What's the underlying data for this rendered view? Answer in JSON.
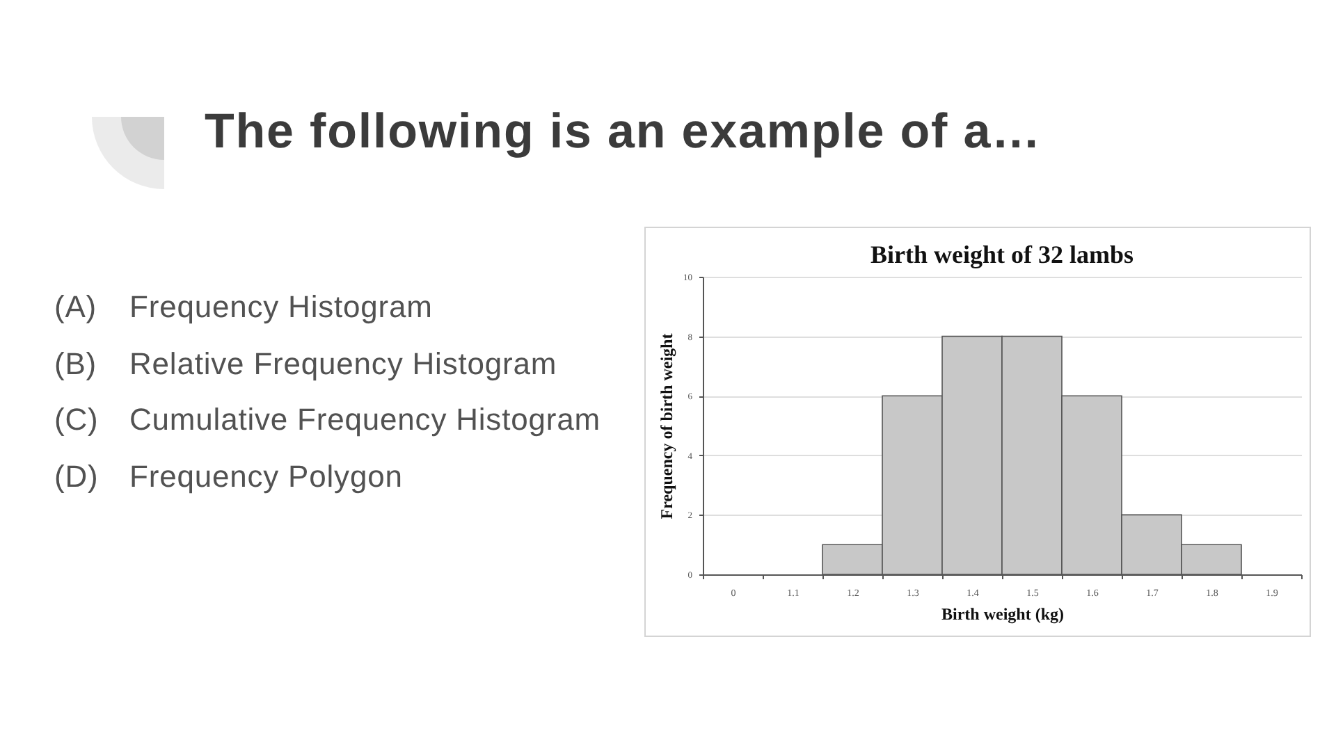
{
  "chart_data": {
    "type": "bar",
    "title": "Birth weight of 32 lambs",
    "xlabel": "Birth weight (kg)",
    "ylabel": "Frequency of birth weight",
    "categories": [
      "0",
      "1.1",
      "1.2",
      "1.3",
      "1.4",
      "1.5",
      "1.6",
      "1.7",
      "1.8",
      "1.9"
    ],
    "values": [
      0,
      0,
      1,
      6,
      8,
      8,
      6,
      2,
      1,
      0
    ],
    "color": "#c8c8c8",
    "ylim": [
      0,
      10
    ],
    "yticks": [
      0,
      2,
      4,
      6,
      8,
      10
    ],
    "grid": "y",
    "annotations": [
      "The following is an example of a…",
      "(A) Frequency Histogram",
      "(B) Relative Frequency Histogram",
      "(C) Cumulative Frequency Histogram",
      "(D) Frequency Polygon"
    ]
  }
}
